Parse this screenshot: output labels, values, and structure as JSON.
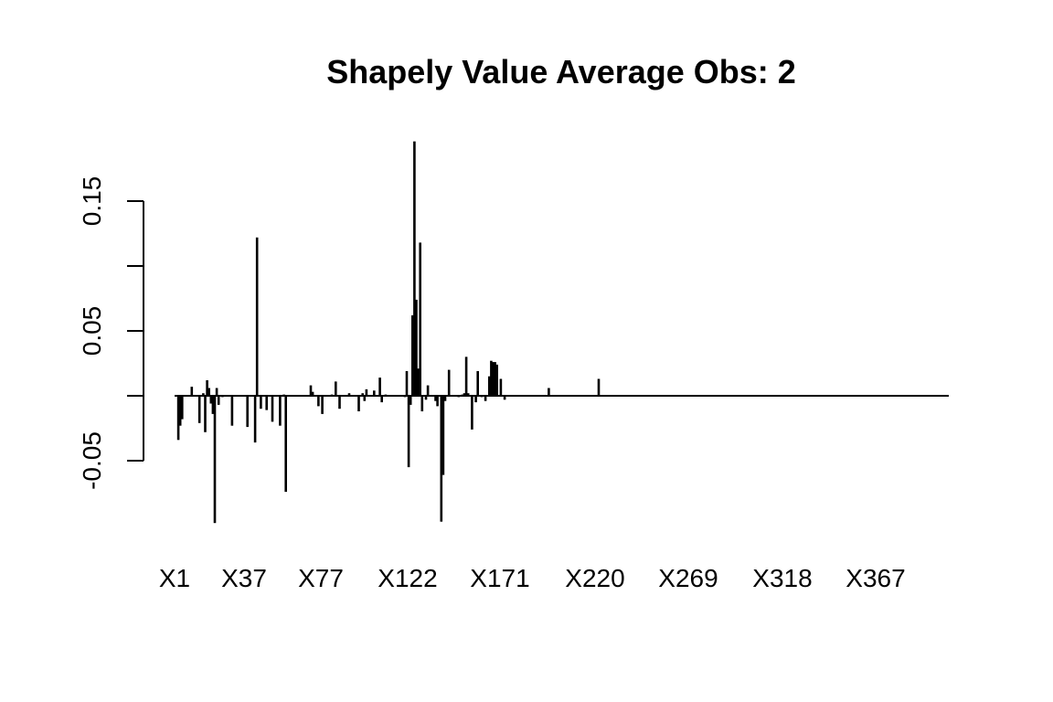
{
  "chart_data": {
    "type": "bar",
    "title": "Shapely Value Average Obs:  2",
    "xlabel": "",
    "ylabel": "",
    "x_tick_labels": [
      "X1",
      "X37",
      "X77",
      "X122",
      "X171",
      "X220",
      "X269",
      "X318",
      "X367"
    ],
    "y_tick_labels": [
      "-0.05",
      "0.05",
      "0.15"
    ],
    "y_ticks": [
      -0.05,
      0.0,
      0.05,
      0.1,
      0.15
    ],
    "ylim": [
      -0.1,
      0.2
    ],
    "n_features": 400,
    "series": [
      {
        "values_by_feature": [
          [
            2,
            -0.034
          ],
          [
            3,
            -0.023
          ],
          [
            4,
            -0.018
          ],
          [
            9,
            0.007
          ],
          [
            13,
            -0.021
          ],
          [
            15,
            0.002
          ],
          [
            16,
            -0.028
          ],
          [
            17,
            0.012
          ],
          [
            18,
            0.006
          ],
          [
            19,
            -0.006
          ],
          [
            20,
            -0.014
          ],
          [
            21,
            -0.098
          ],
          [
            22,
            0.006
          ],
          [
            23,
            -0.007
          ],
          [
            25,
            -0.001
          ],
          [
            30,
            -0.023
          ],
          [
            38,
            -0.024
          ],
          [
            42,
            -0.036
          ],
          [
            43,
            0.122
          ],
          [
            45,
            -0.01
          ],
          [
            48,
            -0.011
          ],
          [
            51,
            -0.02
          ],
          [
            55,
            -0.023
          ],
          [
            57,
            0.001
          ],
          [
            58,
            -0.074
          ],
          [
            71,
            0.008
          ],
          [
            72,
            0.003
          ],
          [
            75,
            -0.008
          ],
          [
            77,
            -0.014
          ],
          [
            82,
            0.001
          ],
          [
            84,
            0.011
          ],
          [
            86,
            -0.01
          ],
          [
            91,
            0.002
          ],
          [
            96,
            -0.012
          ],
          [
            98,
            0.002
          ],
          [
            99,
            -0.004
          ],
          [
            100,
            0.005
          ],
          [
            104,
            0.004
          ],
          [
            107,
            0.014
          ],
          [
            108,
            -0.005
          ],
          [
            110,
            0.001
          ],
          [
            120,
            -0.001
          ],
          [
            121,
            0.019
          ],
          [
            122,
            -0.055
          ],
          [
            123,
            -0.007
          ],
          [
            124,
            0.062
          ],
          [
            125,
            0.196
          ],
          [
            126,
            0.074
          ],
          [
            127,
            0.021
          ],
          [
            128,
            0.118
          ],
          [
            129,
            -0.012
          ],
          [
            131,
            -0.003
          ],
          [
            132,
            0.008
          ],
          [
            136,
            -0.004
          ],
          [
            137,
            -0.008
          ],
          [
            139,
            -0.097
          ],
          [
            140,
            -0.061
          ],
          [
            141,
            -0.004
          ],
          [
            143,
            0.02
          ],
          [
            148,
            -0.001
          ],
          [
            150,
            0.001
          ],
          [
            151,
            0.002
          ],
          [
            152,
            0.03
          ],
          [
            153,
            0.002
          ],
          [
            155,
            -0.026
          ],
          [
            157,
            -0.005
          ],
          [
            158,
            0.019
          ],
          [
            160,
            -0.001
          ],
          [
            162,
            -0.004
          ],
          [
            164,
            0.015
          ],
          [
            165,
            0.027
          ],
          [
            166,
            0.026
          ],
          [
            167,
            0.026
          ],
          [
            168,
            0.024
          ],
          [
            170,
            0.013
          ],
          [
            172,
            -0.003
          ],
          [
            195,
            0.006
          ],
          [
            221,
            0.013
          ]
        ]
      }
    ],
    "grid": false,
    "legend": "none"
  }
}
